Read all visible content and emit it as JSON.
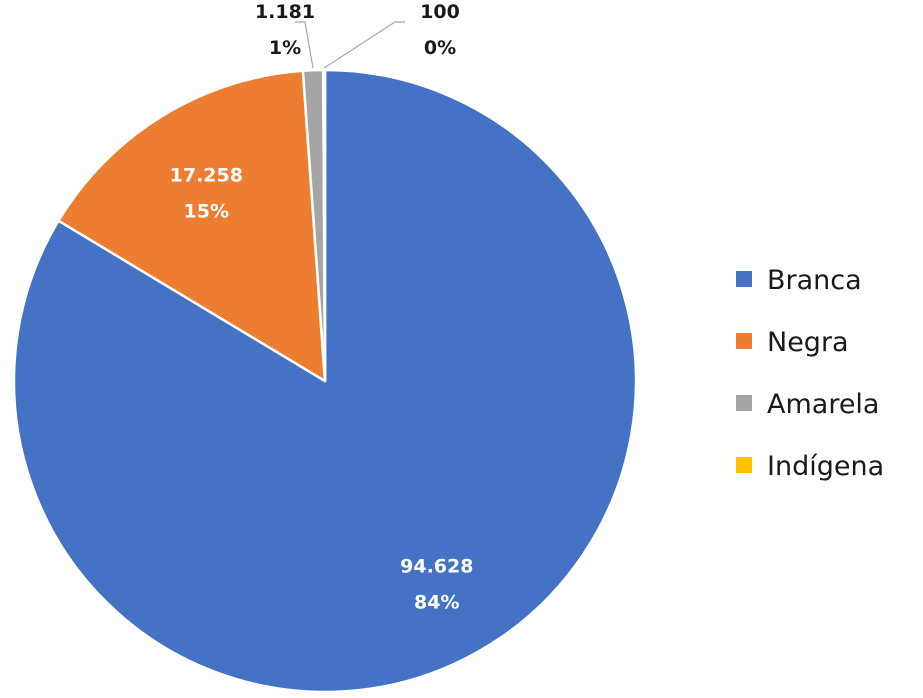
{
  "chart_data": {
    "type": "pie",
    "title": "",
    "categories": [
      "Branca",
      "Negra",
      "Amarela",
      "Indígena"
    ],
    "values": [
      94628,
      17258,
      1181,
      100
    ],
    "value_labels": [
      "94.628",
      "17.258",
      "1.181",
      "100"
    ],
    "percent_labels": [
      "84%",
      "15%",
      "1%",
      "0%"
    ],
    "colors": [
      "#4472C4",
      "#ED7D31",
      "#A5A5A5",
      "#FFC000"
    ],
    "start_angle_deg": 0,
    "direction": "clockwise",
    "legend_position": "right"
  }
}
